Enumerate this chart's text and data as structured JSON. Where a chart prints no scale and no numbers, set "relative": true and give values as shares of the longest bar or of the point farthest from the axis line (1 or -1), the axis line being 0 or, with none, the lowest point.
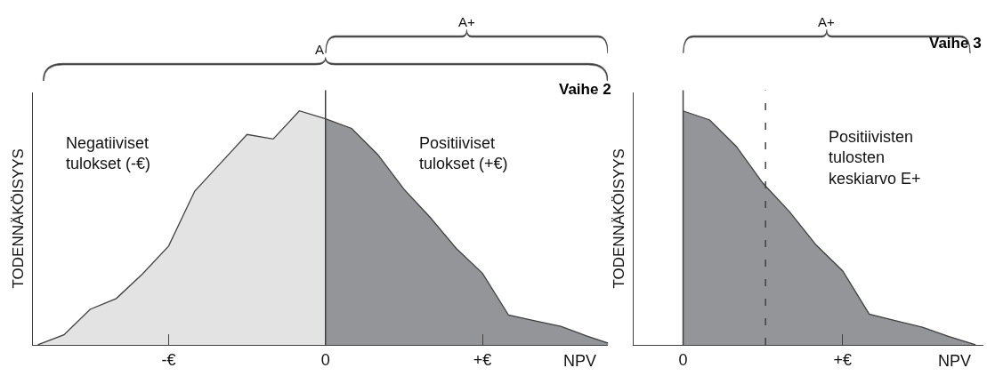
{
  "chart_data": [
    {
      "type": "area",
      "title": "Vaihe 2",
      "relative": true,
      "xlabel": "NPV",
      "ylabel": "TODENNÄKÖISYYS",
      "categories": [
        null,
        null,
        null,
        null,
        null,
        "-€",
        null,
        null,
        null,
        null,
        null,
        "0",
        null,
        null,
        null,
        null,
        null,
        "+€",
        null,
        null,
        null,
        null,
        null
      ],
      "series": [
        {
          "name": "Negatiiviset tulokset (-€)",
          "color": "#e3e3e3",
          "values": [
            0,
            0.043,
            0.152,
            0.198,
            0.303,
            0.422,
            0.657,
            0.778,
            0.899,
            0.88,
            1,
            0.966,
            null,
            null,
            null,
            null,
            null,
            null,
            null,
            null,
            null,
            null,
            null
          ]
        },
        {
          "name": "Positiiviset tulokset (+€)",
          "color": "#939598",
          "values": [
            null,
            null,
            null,
            null,
            null,
            null,
            null,
            null,
            null,
            null,
            null,
            0.966,
            0.925,
            0.813,
            0.665,
            0.545,
            0.412,
            0.306,
            0.127,
            0.103,
            0.079,
            0.037,
            0
          ]
        }
      ],
      "ref_lines": [
        {
          "axis": "x",
          "value": "0",
          "line_style": "solid"
        }
      ],
      "annotations": [
        "A",
        "A+"
      ]
    },
    {
      "type": "area",
      "title": "Vaihe 3",
      "relative": true,
      "xlabel": "NPV",
      "ylabel": "TODENNÄKÖISYYS",
      "categories": [
        null,
        null,
        "0",
        null,
        null,
        null,
        null,
        null,
        "+€",
        null,
        null,
        null,
        null,
        null
      ],
      "series": [
        {
          "color": "#939598",
          "values": [
            null,
            null,
            1,
            0.961,
            0.848,
            0.691,
            0.569,
            0.427,
            0.316,
            0.131,
            0.103,
            0.075,
            0.035,
            0
          ]
        }
      ],
      "ref_lines": [
        {
          "axis": "x",
          "value": "0",
          "line_style": "solid"
        }
      ],
      "annotations": [
        "A+",
        "Positiivisten tulosten keskiarvo E+"
      ]
    }
  ]
}
